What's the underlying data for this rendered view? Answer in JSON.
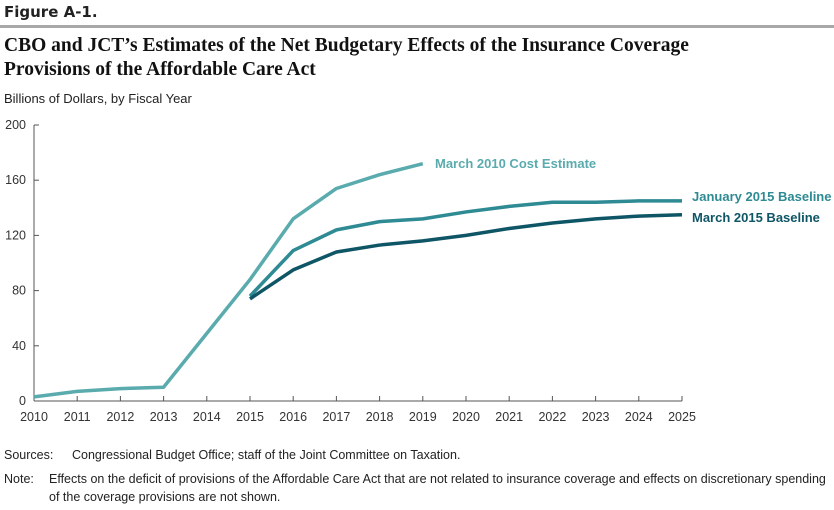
{
  "figure_label": "Figure A-1.",
  "chart_data": {
    "type": "line",
    "title": "CBO and JCT’s Estimates of the Net Budgetary Effects of the Insurance Coverage Provisions of the Affordable Care Act",
    "ylabel": "Billions of Dollars, by Fiscal Year",
    "xlabel": "",
    "ylim": [
      0,
      200
    ],
    "yticks": [
      0,
      40,
      80,
      120,
      160,
      200
    ],
    "xticks": [
      2010,
      2011,
      2012,
      2013,
      2014,
      2015,
      2016,
      2017,
      2018,
      2019,
      2020,
      2021,
      2022,
      2023,
      2024,
      2025
    ],
    "grid": false,
    "series": [
      {
        "name": "March 2010 Cost Estimate",
        "color": "#5aabad",
        "x": [
          2010,
          2011,
          2012,
          2013,
          2014,
          2015,
          2016,
          2017,
          2018,
          2019
        ],
        "values": [
          3,
          7,
          9,
          10,
          49,
          88,
          132,
          154,
          164,
          172
        ]
      },
      {
        "name": "January 2015 Baseline",
        "color": "#2e8a93",
        "x": [
          2015,
          2016,
          2017,
          2018,
          2019,
          2020,
          2021,
          2022,
          2023,
          2024,
          2025
        ],
        "values": [
          76,
          109,
          124,
          130,
          132,
          137,
          141,
          144,
          144,
          145,
          145
        ]
      },
      {
        "name": "March 2015 Baseline",
        "color": "#0e5566",
        "x": [
          2015,
          2016,
          2017,
          2018,
          2019,
          2020,
          2021,
          2022,
          2023,
          2024,
          2025
        ],
        "values": [
          74,
          95,
          108,
          113,
          116,
          120,
          125,
          129,
          132,
          134,
          135
        ]
      }
    ]
  },
  "sources_label": "Sources:",
  "sources": "Congressional Budget Office; staff of the Joint Committee on Taxation.",
  "note_label": "Note:",
  "note": "Effects on the deficit of provisions of the Affordable Care Act that are not related to insurance coverage and effects on discretionary spending of the coverage provisions are not shown."
}
